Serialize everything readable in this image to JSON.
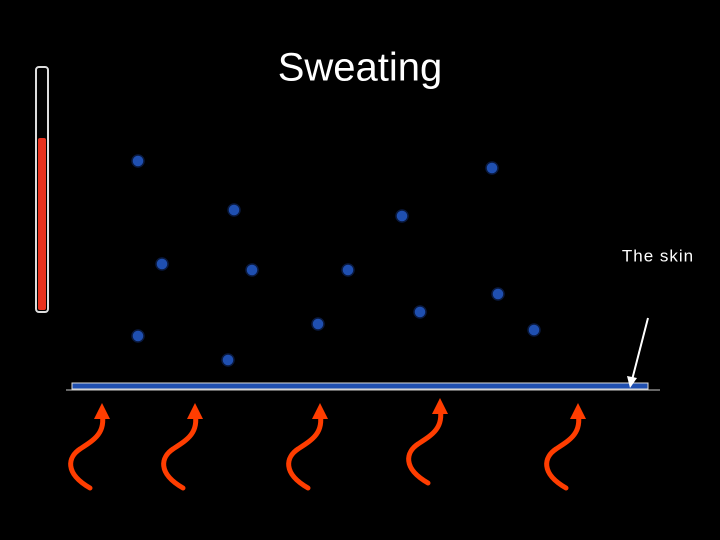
{
  "title": "Sweating",
  "label": "The skin"
}
